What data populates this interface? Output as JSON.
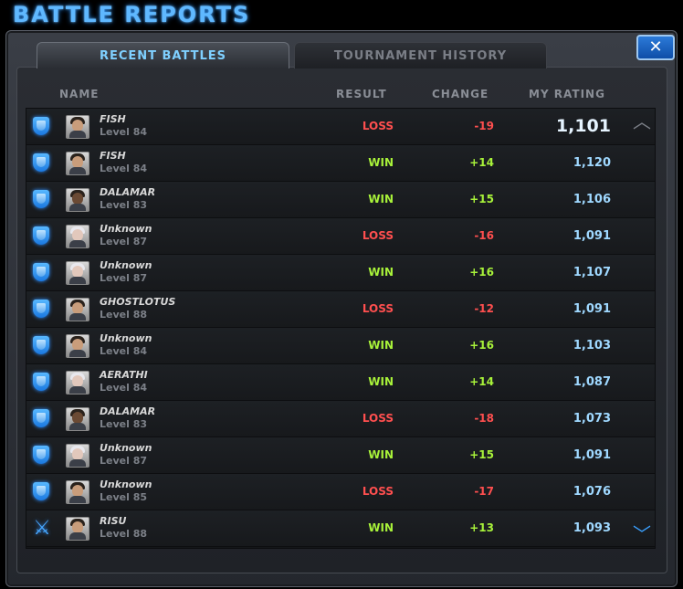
{
  "window": {
    "title": "BATTLE REPORTS",
    "close_label": "✕"
  },
  "tabs": [
    {
      "label": "RECENT BATTLES",
      "active": true
    },
    {
      "label": "TOURNAMENT HISTORY",
      "active": false
    }
  ],
  "columns": {
    "name": "NAME",
    "result": "RESULT",
    "change": "CHANGE",
    "rating": "MY RATING"
  },
  "colors": {
    "win": "#a8f23a",
    "loss": "#ff4f4f",
    "accent": "#5fb8ff"
  },
  "rows": [
    {
      "icon": "shield-icon",
      "avatar": "normal",
      "name": "FISH",
      "level": "Level 84",
      "result": "LOSS",
      "change": "-19",
      "rating": "1,101"
    },
    {
      "icon": "shield-icon",
      "avatar": "normal",
      "name": "FISH",
      "level": "Level 84",
      "result": "WIN",
      "change": "+14",
      "rating": "1,120"
    },
    {
      "icon": "shield-icon",
      "avatar": "dark",
      "name": "DALAMAR",
      "level": "Level 83",
      "result": "WIN",
      "change": "+15",
      "rating": "1,106"
    },
    {
      "icon": "shield-icon",
      "avatar": "light",
      "name": "Unknown",
      "level": "Level 87",
      "result": "LOSS",
      "change": "-16",
      "rating": "1,091"
    },
    {
      "icon": "shield-icon",
      "avatar": "light",
      "name": "Unknown",
      "level": "Level 87",
      "result": "WIN",
      "change": "+16",
      "rating": "1,107"
    },
    {
      "icon": "shield-icon",
      "avatar": "normal",
      "name": "GHOSTLOTUS",
      "level": "Level 88",
      "result": "LOSS",
      "change": "-12",
      "rating": "1,091"
    },
    {
      "icon": "shield-icon",
      "avatar": "normal",
      "name": "Unknown",
      "level": "Level 84",
      "result": "WIN",
      "change": "+16",
      "rating": "1,103"
    },
    {
      "icon": "shield-icon",
      "avatar": "light",
      "name": "AERATHI",
      "level": "Level 84",
      "result": "WIN",
      "change": "+14",
      "rating": "1,087"
    },
    {
      "icon": "shield-icon",
      "avatar": "dark",
      "name": "DALAMAR",
      "level": "Level 83",
      "result": "LOSS",
      "change": "-18",
      "rating": "1,073"
    },
    {
      "icon": "shield-icon",
      "avatar": "light",
      "name": "Unknown",
      "level": "Level 87",
      "result": "WIN",
      "change": "+15",
      "rating": "1,091"
    },
    {
      "icon": "shield-icon",
      "avatar": "normal",
      "name": "Unknown",
      "level": "Level 85",
      "result": "LOSS",
      "change": "-17",
      "rating": "1,076"
    },
    {
      "icon": "crossed-swords-icon",
      "avatar": "normal",
      "name": "RISU",
      "level": "Level 88",
      "result": "WIN",
      "change": "+13",
      "rating": "1,093"
    }
  ]
}
